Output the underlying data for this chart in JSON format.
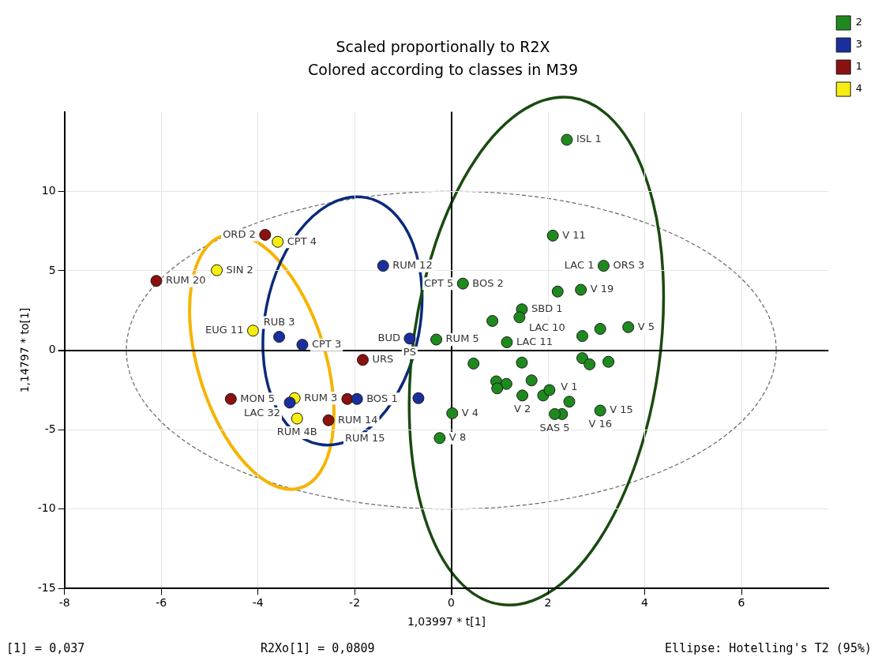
{
  "chart_data": {
    "type": "scatter",
    "title": "Scaled proportionally to R2X",
    "subtitle": "Colored according to classes in M39",
    "xlabel": "1,03997 * t[1]",
    "ylabel": "1,14797 * to[1]",
    "xlim": [
      -8,
      7.8
    ],
    "ylim": [
      -15,
      15
    ],
    "xticks": [
      -8,
      -6,
      -4,
      -2,
      0,
      2,
      4,
      6
    ],
    "yticks": [
      -15,
      -10,
      -5,
      0,
      5,
      10
    ],
    "grid": true,
    "legend": "top right",
    "marker": "circle",
    "series": [
      {
        "name": "2",
        "color": "#1e8a1e",
        "x": [
          2.39,
          2.1,
          0.24,
          3.15,
          2.2,
          2.68,
          1.46,
          1.41,
          0.85,
          -0.31,
          1.15,
          2.71,
          3.08,
          3.66,
          2.71,
          2.86,
          3.25,
          0.46,
          1.46,
          0.93,
          1.14,
          0.95,
          1.66,
          1.47,
          1.9,
          2.03,
          2.44,
          2.29,
          2.14,
          0.02,
          -0.24,
          3.08
        ],
        "values": [
          13.24,
          7.21,
          4.19,
          5.31,
          3.69,
          3.8,
          2.57,
          2.07,
          1.84,
          0.67,
          0.5,
          0.89,
          1.34,
          1.45,
          -0.5,
          -0.89,
          -0.73,
          -0.84,
          -0.78,
          -1.96,
          -2.12,
          -2.4,
          -1.9,
          -2.85,
          -2.85,
          -2.51,
          -3.24,
          -4.02,
          -4.02,
          -3.97,
          -5.53,
          -3.8
        ]
      },
      {
        "name": "3",
        "color": "#1a2f9e",
        "x": [
          -1.41,
          -3.56,
          -3.08,
          -0.86,
          -3.34,
          -1.95,
          -0.68
        ],
        "values": [
          5.31,
          0.84,
          0.34,
          0.73,
          -3.3,
          -3.07,
          -3.02
        ]
      },
      {
        "name": "1",
        "color": "#8b1010",
        "x": [
          -6.1,
          -3.85,
          -4.56,
          -1.83,
          -2.15,
          -2.54
        ],
        "values": [
          4.36,
          7.26,
          -3.07,
          -0.61,
          -3.07,
          -4.41
        ]
      },
      {
        "name": "4",
        "color": "#f5ee10",
        "x": [
          -3.59,
          -4.85,
          -4.1,
          -3.24,
          -3.19
        ],
        "values": [
          6.82,
          5.03,
          1.23,
          -3.02,
          -4.3
        ]
      }
    ],
    "annotations": [
      {
        "text": "RUM 20",
        "x": -6.1,
        "y": 4.36
      },
      {
        "text": "ORD 2",
        "x": -3.85,
        "y": 7.26
      },
      {
        "text": "CPT 4",
        "x": -3.59,
        "y": 6.82
      },
      {
        "text": "SIN 2",
        "x": -4.85,
        "y": 5.03
      },
      {
        "text": "EUG 11",
        "x": -4.1,
        "y": 1.23
      },
      {
        "text": "RUB 3",
        "x": -3.56,
        "y": 0.84
      },
      {
        "text": "CPT 3",
        "x": -3.08,
        "y": 0.34
      },
      {
        "text": "RUM 12",
        "x": -1.41,
        "y": 5.31
      },
      {
        "text": "BUD",
        "x": -0.86,
        "y": 0.73
      },
      {
        "text": "PS",
        "x": -0.86,
        "y": 0.73
      },
      {
        "text": "URS",
        "x": -1.83,
        "y": -0.61
      },
      {
        "text": "RUM 3",
        "x": -3.24,
        "y": -3.02
      },
      {
        "text": "MON 5",
        "x": -4.56,
        "y": -3.07
      },
      {
        "text": "LAC 32",
        "x": -3.34,
        "y": -3.3
      },
      {
        "text": "RUM 4B",
        "x": -3.19,
        "y": -4.3
      },
      {
        "text": "RUM 14",
        "x": -2.54,
        "y": -4.41
      },
      {
        "text": "RUM 15",
        "x": -2.54,
        "y": -4.41
      },
      {
        "text": "BOS 1",
        "x": -1.95,
        "y": -3.07
      },
      {
        "text": "ISL 1",
        "x": 2.39,
        "y": 13.24
      },
      {
        "text": "V 11",
        "x": 2.1,
        "y": 7.21
      },
      {
        "text": "BOS 2",
        "x": 0.24,
        "y": 4.19
      },
      {
        "text": "CPT 5",
        "x": 0.24,
        "y": 4.19
      },
      {
        "text": "SBD 1",
        "x": 1.46,
        "y": 2.57
      },
      {
        "text": "ORS 3",
        "x": 3.15,
        "y": 5.31
      },
      {
        "text": "LAC 1",
        "x": 3.15,
        "y": 5.31
      },
      {
        "text": "LAC 10",
        "x": 1.41,
        "y": 2.07
      },
      {
        "text": "V 19",
        "x": 2.68,
        "y": 3.8
      },
      {
        "text": "RUM 5",
        "x": -0.31,
        "y": 0.67
      },
      {
        "text": "LAC 11",
        "x": 1.15,
        "y": 0.5
      },
      {
        "text": "V 5",
        "x": 3.66,
        "y": 1.45
      },
      {
        "text": "V 1",
        "x": 2.44,
        "y": -3.24
      },
      {
        "text": "V 15",
        "x": 3.08,
        "y": -3.8
      },
      {
        "text": "V 16",
        "x": 3.08,
        "y": -3.8
      },
      {
        "text": "V 4",
        "x": 0.02,
        "y": -3.97
      },
      {
        "text": "V 8",
        "x": -0.24,
        "y": -5.53
      },
      {
        "text": "V 2",
        "x": 1.47,
        "y": -2.85
      },
      {
        "text": "SAS 5",
        "x": 2.14,
        "y": -4.02
      },
      "[1] = 0,037",
      "R2Xo[1] = 0,0809",
      "Ellipse: Hotelling's T2 (95%)"
    ]
  }
}
